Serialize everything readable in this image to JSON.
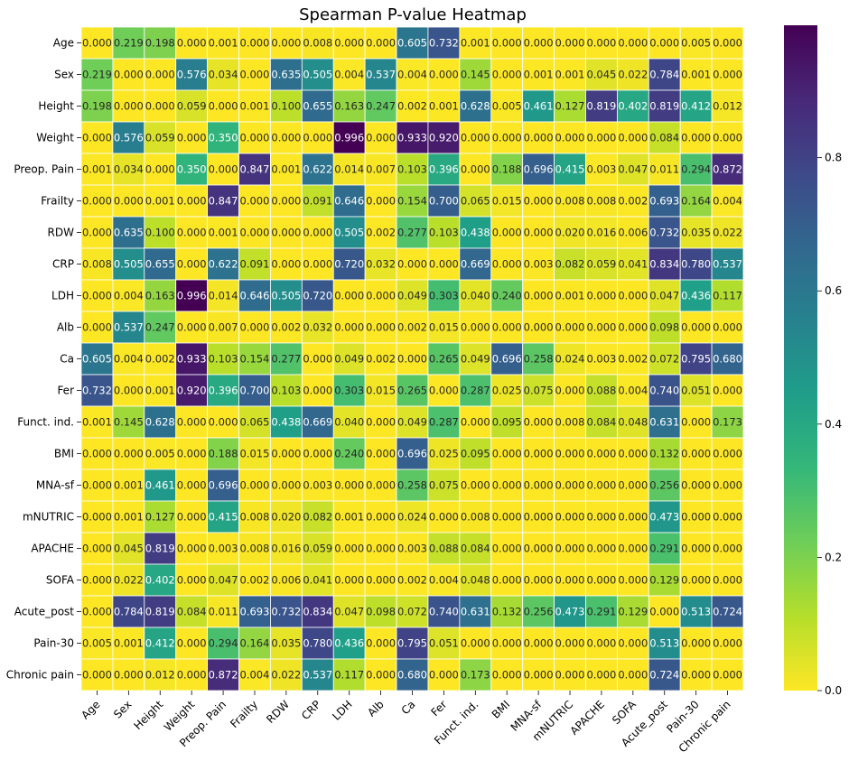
{
  "chart_data": {
    "type": "heatmap",
    "title": "Spearman P-value Heatmap",
    "xlabel": "",
    "ylabel": "",
    "labels": [
      "Age",
      "Sex",
      "Height",
      "Weight",
      "Preop. Pain",
      "Frailty",
      "RDW",
      "CRP",
      "LDH",
      "Alb",
      "Ca",
      "Fer",
      "Funct. ind.",
      "BMI",
      "MNA-sf",
      "mNUTRIC",
      "APACHE",
      "SOFA",
      "Acute_post",
      "Pain-30",
      "Chronic pain"
    ],
    "values": [
      [
        0.0,
        0.219,
        0.198,
        0.0,
        0.001,
        0.0,
        0.0,
        0.008,
        0.0,
        0.0,
        0.605,
        0.732,
        0.001,
        0.0,
        0.0,
        0.0,
        0.0,
        0.0,
        0.0,
        0.005,
        0.0
      ],
      [
        0.219,
        0.0,
        0.0,
        0.576,
        0.034,
        0.0,
        0.635,
        0.505,
        0.004,
        0.537,
        0.004,
        0.0,
        0.145,
        0.0,
        0.001,
        0.001,
        0.045,
        0.022,
        0.784,
        0.001,
        0.0
      ],
      [
        0.198,
        0.0,
        0.0,
        0.059,
        0.0,
        0.001,
        0.1,
        0.655,
        0.163,
        0.247,
        0.002,
        0.001,
        0.628,
        0.005,
        0.461,
        0.127,
        0.819,
        0.402,
        0.819,
        0.412,
        0.012
      ],
      [
        0.0,
        0.576,
        0.059,
        0.0,
        0.35,
        0.0,
        0.0,
        0.0,
        0.996,
        0.0,
        0.933,
        0.92,
        0.0,
        0.0,
        0.0,
        0.0,
        0.0,
        0.0,
        0.084,
        0.0,
        0.0
      ],
      [
        0.001,
        0.034,
        0.0,
        0.35,
        0.0,
        0.847,
        0.001,
        0.622,
        0.014,
        0.007,
        0.103,
        0.396,
        0.0,
        0.188,
        0.696,
        0.415,
        0.003,
        0.047,
        0.011,
        0.294,
        0.872
      ],
      [
        0.0,
        0.0,
        0.001,
        0.0,
        0.847,
        0.0,
        0.0,
        0.091,
        0.646,
        0.0,
        0.154,
        0.7,
        0.065,
        0.015,
        0.0,
        0.008,
        0.008,
        0.002,
        0.693,
        0.164,
        0.004
      ],
      [
        0.0,
        0.635,
        0.1,
        0.0,
        0.001,
        0.0,
        0.0,
        0.0,
        0.505,
        0.002,
        0.277,
        0.103,
        0.438,
        0.0,
        0.0,
        0.02,
        0.016,
        0.006,
        0.732,
        0.035,
        0.022
      ],
      [
        0.008,
        0.505,
        0.655,
        0.0,
        0.622,
        0.091,
        0.0,
        0.0,
        0.72,
        0.032,
        0.0,
        0.0,
        0.669,
        0.0,
        0.003,
        0.082,
        0.059,
        0.041,
        0.834,
        0.78,
        0.537
      ],
      [
        0.0,
        0.004,
        0.163,
        0.996,
        0.014,
        0.646,
        0.505,
        0.72,
        0.0,
        0.0,
        0.049,
        0.303,
        0.04,
        0.24,
        0.0,
        0.001,
        0.0,
        0.0,
        0.047,
        0.436,
        0.117
      ],
      [
        0.0,
        0.537,
        0.247,
        0.0,
        0.007,
        0.0,
        0.002,
        0.032,
        0.0,
        0.0,
        0.002,
        0.015,
        0.0,
        0.0,
        0.0,
        0.0,
        0.0,
        0.0,
        0.098,
        0.0,
        0.0
      ],
      [
        0.605,
        0.004,
        0.002,
        0.933,
        0.103,
        0.154,
        0.277,
        0.0,
        0.049,
        0.002,
        0.0,
        0.265,
        0.049,
        0.696,
        0.258,
        0.024,
        0.003,
        0.002,
        0.072,
        0.795,
        0.68
      ],
      [
        0.732,
        0.0,
        0.001,
        0.92,
        0.396,
        0.7,
        0.103,
        0.0,
        0.303,
        0.015,
        0.265,
        0.0,
        0.287,
        0.025,
        0.075,
        0.0,
        0.088,
        0.004,
        0.74,
        0.051,
        0.0
      ],
      [
        0.001,
        0.145,
        0.628,
        0.0,
        0.0,
        0.065,
        0.438,
        0.669,
        0.04,
        0.0,
        0.049,
        0.287,
        0.0,
        0.095,
        0.0,
        0.008,
        0.084,
        0.048,
        0.631,
        0.0,
        0.173
      ],
      [
        0.0,
        0.0,
        0.005,
        0.0,
        0.188,
        0.015,
        0.0,
        0.0,
        0.24,
        0.0,
        0.696,
        0.025,
        0.095,
        0.0,
        0.0,
        0.0,
        0.0,
        0.0,
        0.132,
        0.0,
        0.0
      ],
      [
        0.0,
        0.001,
        0.461,
        0.0,
        0.696,
        0.0,
        0.0,
        0.003,
        0.0,
        0.0,
        0.258,
        0.075,
        0.0,
        0.0,
        0.0,
        0.0,
        0.0,
        0.0,
        0.256,
        0.0,
        0.0
      ],
      [
        0.0,
        0.001,
        0.127,
        0.0,
        0.415,
        0.008,
        0.02,
        0.082,
        0.001,
        0.0,
        0.024,
        0.0,
        0.008,
        0.0,
        0.0,
        0.0,
        0.0,
        0.0,
        0.473,
        0.0,
        0.0
      ],
      [
        0.0,
        0.045,
        0.819,
        0.0,
        0.003,
        0.008,
        0.016,
        0.059,
        0.0,
        0.0,
        0.003,
        0.088,
        0.084,
        0.0,
        0.0,
        0.0,
        0.0,
        0.0,
        0.291,
        0.0,
        0.0
      ],
      [
        0.0,
        0.022,
        0.402,
        0.0,
        0.047,
        0.002,
        0.006,
        0.041,
        0.0,
        0.0,
        0.002,
        0.004,
        0.048,
        0.0,
        0.0,
        0.0,
        0.0,
        0.0,
        0.129,
        0.0,
        0.0
      ],
      [
        0.0,
        0.784,
        0.819,
        0.084,
        0.011,
        0.693,
        0.732,
        0.834,
        0.047,
        0.098,
        0.072,
        0.74,
        0.631,
        0.132,
        0.256,
        0.473,
        0.291,
        0.129,
        0.0,
        0.513,
        0.724
      ],
      [
        0.005,
        0.001,
        0.412,
        0.0,
        0.294,
        0.164,
        0.035,
        0.78,
        0.436,
        0.0,
        0.795,
        0.051,
        0.0,
        0.0,
        0.0,
        0.0,
        0.0,
        0.0,
        0.513,
        0.0,
        0.0
      ],
      [
        0.0,
        0.0,
        0.012,
        0.0,
        0.872,
        0.004,
        0.022,
        0.537,
        0.117,
        0.0,
        0.68,
        0.0,
        0.173,
        0.0,
        0.0,
        0.0,
        0.0,
        0.0,
        0.724,
        0.0,
        0.0
      ]
    ],
    "value_format": "3 decimals",
    "colormap": "viridis_r",
    "colormap_stops": [
      "#fde725",
      "#b5de2b",
      "#6ece58",
      "#35b779",
      "#1f9e89",
      "#26828e",
      "#31688e",
      "#3e4989",
      "#482878",
      "#440154"
    ],
    "vmin": 0.0,
    "vmax": 0.996,
    "colorbar_ticks": [
      "0.0",
      "0.2",
      "0.4",
      "0.6",
      "0.8"
    ],
    "colorbar_tick_values": [
      0.0,
      0.2,
      0.4,
      0.6,
      0.8
    ],
    "cell_border_color": "#ffffff",
    "annotation_dark_text": "#262626",
    "annotation_light_text": "#ffffff"
  }
}
